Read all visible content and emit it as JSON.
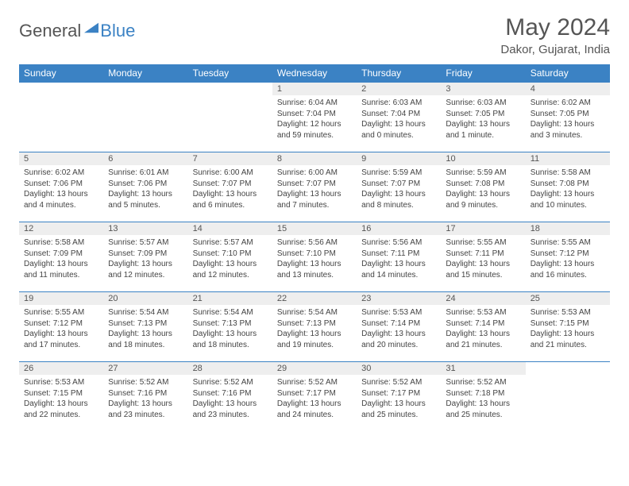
{
  "logo": {
    "text1": "General",
    "text2": "Blue"
  },
  "title": "May 2024",
  "location": "Dakor, Gujarat, India",
  "colors": {
    "header_bg": "#3b82c4",
    "header_text": "#ffffff",
    "daynum_bg": "#eeeeee",
    "border": "#3b82c4",
    "body_text": "#444444",
    "title_text": "#555555"
  },
  "weekdays": [
    "Sunday",
    "Monday",
    "Tuesday",
    "Wednesday",
    "Thursday",
    "Friday",
    "Saturday"
  ],
  "weeks": [
    [
      null,
      null,
      null,
      {
        "n": "1",
        "sr": "Sunrise: 6:04 AM",
        "ss": "Sunset: 7:04 PM",
        "dl": "Daylight: 12 hours and 59 minutes."
      },
      {
        "n": "2",
        "sr": "Sunrise: 6:03 AM",
        "ss": "Sunset: 7:04 PM",
        "dl": "Daylight: 13 hours and 0 minutes."
      },
      {
        "n": "3",
        "sr": "Sunrise: 6:03 AM",
        "ss": "Sunset: 7:05 PM",
        "dl": "Daylight: 13 hours and 1 minute."
      },
      {
        "n": "4",
        "sr": "Sunrise: 6:02 AM",
        "ss": "Sunset: 7:05 PM",
        "dl": "Daylight: 13 hours and 3 minutes."
      }
    ],
    [
      {
        "n": "5",
        "sr": "Sunrise: 6:02 AM",
        "ss": "Sunset: 7:06 PM",
        "dl": "Daylight: 13 hours and 4 minutes."
      },
      {
        "n": "6",
        "sr": "Sunrise: 6:01 AM",
        "ss": "Sunset: 7:06 PM",
        "dl": "Daylight: 13 hours and 5 minutes."
      },
      {
        "n": "7",
        "sr": "Sunrise: 6:00 AM",
        "ss": "Sunset: 7:07 PM",
        "dl": "Daylight: 13 hours and 6 minutes."
      },
      {
        "n": "8",
        "sr": "Sunrise: 6:00 AM",
        "ss": "Sunset: 7:07 PM",
        "dl": "Daylight: 13 hours and 7 minutes."
      },
      {
        "n": "9",
        "sr": "Sunrise: 5:59 AM",
        "ss": "Sunset: 7:07 PM",
        "dl": "Daylight: 13 hours and 8 minutes."
      },
      {
        "n": "10",
        "sr": "Sunrise: 5:59 AM",
        "ss": "Sunset: 7:08 PM",
        "dl": "Daylight: 13 hours and 9 minutes."
      },
      {
        "n": "11",
        "sr": "Sunrise: 5:58 AM",
        "ss": "Sunset: 7:08 PM",
        "dl": "Daylight: 13 hours and 10 minutes."
      }
    ],
    [
      {
        "n": "12",
        "sr": "Sunrise: 5:58 AM",
        "ss": "Sunset: 7:09 PM",
        "dl": "Daylight: 13 hours and 11 minutes."
      },
      {
        "n": "13",
        "sr": "Sunrise: 5:57 AM",
        "ss": "Sunset: 7:09 PM",
        "dl": "Daylight: 13 hours and 12 minutes."
      },
      {
        "n": "14",
        "sr": "Sunrise: 5:57 AM",
        "ss": "Sunset: 7:10 PM",
        "dl": "Daylight: 13 hours and 12 minutes."
      },
      {
        "n": "15",
        "sr": "Sunrise: 5:56 AM",
        "ss": "Sunset: 7:10 PM",
        "dl": "Daylight: 13 hours and 13 minutes."
      },
      {
        "n": "16",
        "sr": "Sunrise: 5:56 AM",
        "ss": "Sunset: 7:11 PM",
        "dl": "Daylight: 13 hours and 14 minutes."
      },
      {
        "n": "17",
        "sr": "Sunrise: 5:55 AM",
        "ss": "Sunset: 7:11 PM",
        "dl": "Daylight: 13 hours and 15 minutes."
      },
      {
        "n": "18",
        "sr": "Sunrise: 5:55 AM",
        "ss": "Sunset: 7:12 PM",
        "dl": "Daylight: 13 hours and 16 minutes."
      }
    ],
    [
      {
        "n": "19",
        "sr": "Sunrise: 5:55 AM",
        "ss": "Sunset: 7:12 PM",
        "dl": "Daylight: 13 hours and 17 minutes."
      },
      {
        "n": "20",
        "sr": "Sunrise: 5:54 AM",
        "ss": "Sunset: 7:13 PM",
        "dl": "Daylight: 13 hours and 18 minutes."
      },
      {
        "n": "21",
        "sr": "Sunrise: 5:54 AM",
        "ss": "Sunset: 7:13 PM",
        "dl": "Daylight: 13 hours and 18 minutes."
      },
      {
        "n": "22",
        "sr": "Sunrise: 5:54 AM",
        "ss": "Sunset: 7:13 PM",
        "dl": "Daylight: 13 hours and 19 minutes."
      },
      {
        "n": "23",
        "sr": "Sunrise: 5:53 AM",
        "ss": "Sunset: 7:14 PM",
        "dl": "Daylight: 13 hours and 20 minutes."
      },
      {
        "n": "24",
        "sr": "Sunrise: 5:53 AM",
        "ss": "Sunset: 7:14 PM",
        "dl": "Daylight: 13 hours and 21 minutes."
      },
      {
        "n": "25",
        "sr": "Sunrise: 5:53 AM",
        "ss": "Sunset: 7:15 PM",
        "dl": "Daylight: 13 hours and 21 minutes."
      }
    ],
    [
      {
        "n": "26",
        "sr": "Sunrise: 5:53 AM",
        "ss": "Sunset: 7:15 PM",
        "dl": "Daylight: 13 hours and 22 minutes."
      },
      {
        "n": "27",
        "sr": "Sunrise: 5:52 AM",
        "ss": "Sunset: 7:16 PM",
        "dl": "Daylight: 13 hours and 23 minutes."
      },
      {
        "n": "28",
        "sr": "Sunrise: 5:52 AM",
        "ss": "Sunset: 7:16 PM",
        "dl": "Daylight: 13 hours and 23 minutes."
      },
      {
        "n": "29",
        "sr": "Sunrise: 5:52 AM",
        "ss": "Sunset: 7:17 PM",
        "dl": "Daylight: 13 hours and 24 minutes."
      },
      {
        "n": "30",
        "sr": "Sunrise: 5:52 AM",
        "ss": "Sunset: 7:17 PM",
        "dl": "Daylight: 13 hours and 25 minutes."
      },
      {
        "n": "31",
        "sr": "Sunrise: 5:52 AM",
        "ss": "Sunset: 7:18 PM",
        "dl": "Daylight: 13 hours and 25 minutes."
      },
      null
    ]
  ]
}
